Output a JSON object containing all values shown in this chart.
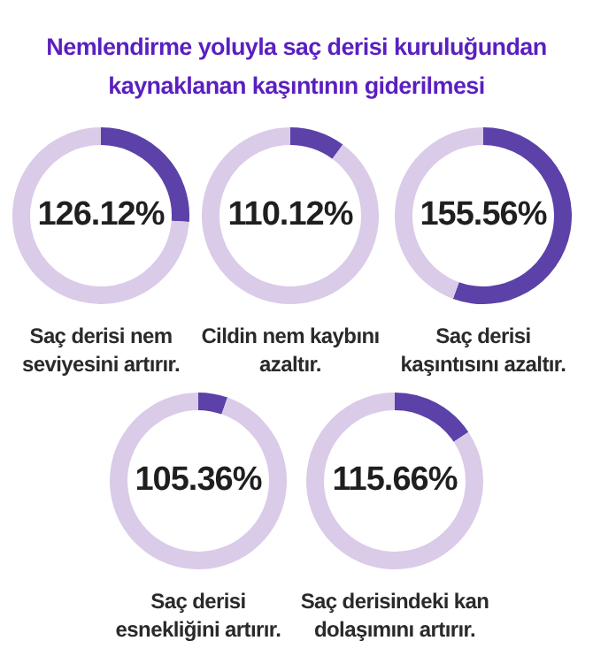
{
  "chart_data": [
    {
      "type": "other",
      "title": "Nemlendirme yoluyla saç derisi kuruluğundan kaynaklanan kaşıntının giderilmesi"
    },
    {
      "type": "donut",
      "title": "Saç derisi nem seviyesini artırır.",
      "categories": [
        null,
        null
      ],
      "values": [
        26.12,
        73.88
      ],
      "colors": [
        "#5b41a8",
        "#dacbe9"
      ],
      "annotations": [
        "126.12%"
      ]
    },
    {
      "type": "donut",
      "title": "Cildin nem kaybını azaltır.",
      "categories": [
        null,
        null
      ],
      "values": [
        10.12,
        89.88
      ],
      "colors": [
        "#5b41a8",
        "#dacbe9"
      ],
      "annotations": [
        "110.12%"
      ]
    },
    {
      "type": "donut",
      "title": "Saç derisi kaşıntısını azaltır.",
      "categories": [
        null,
        null
      ],
      "values": [
        55.56,
        44.44
      ],
      "colors": [
        "#5b41a8",
        "#dacbe9"
      ],
      "annotations": [
        "155.56%"
      ]
    },
    {
      "type": "donut",
      "title": "Saç derisi esnekliğini artırır.",
      "categories": [
        null,
        null
      ],
      "values": [
        5.36,
        94.64
      ],
      "colors": [
        "#5b41a8",
        "#dacbe9"
      ],
      "annotations": [
        "105.36%"
      ]
    },
    {
      "type": "donut",
      "title": "Saç derisindeki kan dolaşımını artırır.",
      "categories": [
        null,
        null
      ],
      "values": [
        15.66,
        84.34
      ],
      "colors": [
        "#5b41a8",
        "#dacbe9"
      ],
      "annotations": [
        "115.66%"
      ]
    }
  ]
}
